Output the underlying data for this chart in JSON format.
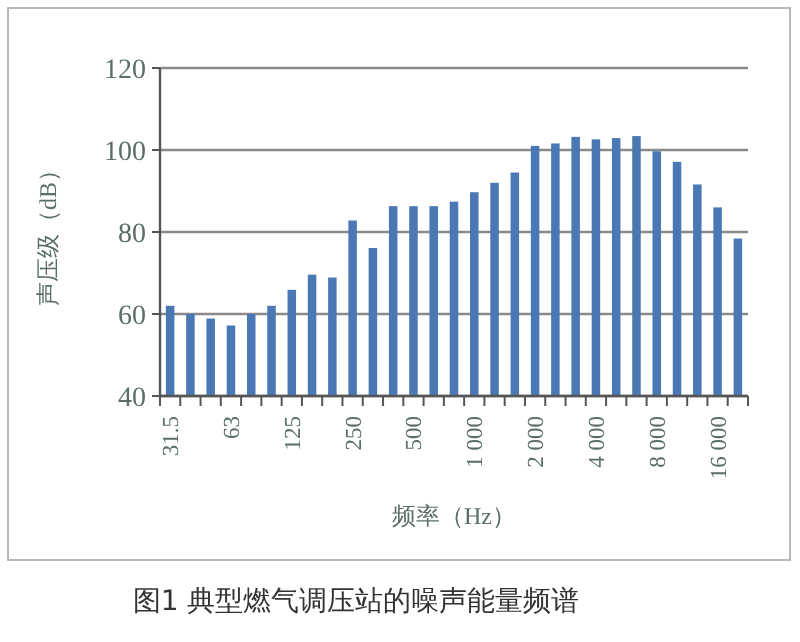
{
  "chart_data": {
    "type": "bar",
    "title": "图1  典型燃气调压站的噪声能量频谱",
    "xlabel": "频率（Hz）",
    "ylabel": "声压级（dB）",
    "categories": [
      "31.5",
      null,
      null,
      "63",
      null,
      null,
      "125",
      null,
      null,
      "250",
      null,
      null,
      "500",
      null,
      null,
      "1 000",
      null,
      null,
      "2 000",
      null,
      null,
      "4 000",
      null,
      null,
      "8 000",
      null,
      null,
      "16 000",
      null
    ],
    "values": [
      62,
      60,
      58.9,
      57.2,
      60,
      62,
      65.9,
      69.6,
      68.9,
      82.8,
      76.1,
      86.3,
      86.3,
      86.3,
      87.4,
      89.7,
      92,
      94.5,
      101,
      101.6,
      103.2,
      102.6,
      102.9,
      103.4,
      99.7,
      97.1,
      91.6,
      86,
      78.4
    ],
    "color": "#4a78b5",
    "ylim": [
      40,
      120
    ],
    "yticks": [
      40,
      60,
      80,
      100,
      120
    ],
    "grid": "y"
  }
}
